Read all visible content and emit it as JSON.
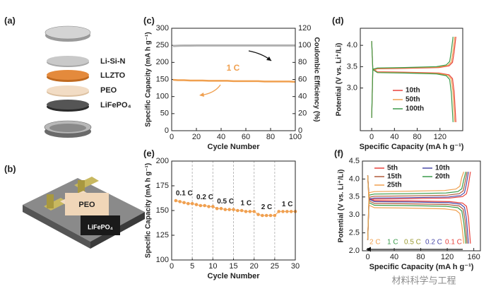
{
  "schematics": [
    {
      "panel_label": "(a)",
      "labels": [
        "Li-Si-N",
        "LLZTO",
        "PEO",
        "LiFePO₄"
      ]
    },
    {
      "panel_label": "(b)",
      "labels": [
        "PEO",
        "LiFePO₄"
      ]
    }
  ],
  "watermark": "材料科学与工程",
  "chart_data": [
    {
      "type": "line",
      "panel_label": "(c)",
      "xlabel": "Cycle Number",
      "ylabel": "Specific Capacity (mA h g⁻¹)",
      "y2label": "Coulombic Efficiency (%)",
      "xlim": [
        0,
        100
      ],
      "xticks": [
        0,
        20,
        40,
        60,
        80,
        100
      ],
      "ylim": [
        0,
        300
      ],
      "yticks": [
        0,
        50,
        100,
        150,
        200,
        250,
        300
      ],
      "y2lim": [
        0,
        120
      ],
      "y2ticks": [
        0,
        20,
        40,
        60,
        80,
        100,
        120
      ],
      "annotation": "1 C",
      "x": [
        1,
        5,
        10,
        15,
        20,
        25,
        30,
        35,
        40,
        45,
        50,
        55,
        60,
        65,
        70,
        75,
        80,
        85,
        90,
        95,
        100
      ],
      "series": [
        {
          "color": "#f0a050",
          "values": [
            149,
            148,
            148,
            147,
            147,
            147,
            146,
            146,
            146,
            146,
            145,
            145,
            145,
            145,
            145,
            144,
            144,
            144,
            144,
            144,
            143
          ]
        },
        {
          "color": "#b0b0b0",
          "axis": "y2",
          "values": [
            99.2,
            99.6,
            99.7,
            99.7,
            99.8,
            99.8,
            99.8,
            99.8,
            99.8,
            99.8,
            99.8,
            99.8,
            99.8,
            99.8,
            99.8,
            99.8,
            99.8,
            99.8,
            99.8,
            99.8,
            99.8
          ]
        }
      ]
    },
    {
      "type": "curves",
      "panel_label": "(d)",
      "xlabel": "Specific Capacity (mA h g⁻¹)",
      "ylabel": "Potential (V vs. Li⁺/Li)",
      "xlim": [
        -20,
        160
      ],
      "xticks": [
        0,
        40,
        80,
        120
      ],
      "ylim": [
        2.0,
        4.4
      ],
      "yticks": [
        {
          "value": 3.0,
          "label": "3.0"
        },
        {
          "value": 3.5,
          "label": "3.5"
        },
        {
          "value": 4.0,
          "label": "4.0"
        }
      ],
      "series": [
        {
          "name": "10th",
          "color": "#e8413c",
          "x": [
            0,
            2,
            10,
            59,
            118,
            136,
            142,
            145,
            148,
            null,
            0,
            2,
            10,
            59,
            118,
            136,
            142,
            145,
            148
          ],
          "values": [
            2.3,
            3.42,
            3.45,
            3.46,
            3.48,
            3.52,
            3.6,
            3.85,
            4.2,
            null,
            4.1,
            3.45,
            3.38,
            3.37,
            3.35,
            3.31,
            3.22,
            2.9,
            2.2
          ]
        },
        {
          "name": "50th",
          "color": "#f0a050",
          "x": [
            0,
            2,
            10,
            58,
            117,
            134,
            140,
            143,
            146,
            null,
            0,
            2,
            10,
            58,
            117,
            134,
            140,
            143,
            146
          ],
          "values": [
            2.3,
            3.43,
            3.46,
            3.47,
            3.49,
            3.53,
            3.61,
            3.86,
            4.2,
            null,
            4.1,
            3.44,
            3.37,
            3.36,
            3.34,
            3.3,
            3.21,
            2.89,
            2.2
          ]
        },
        {
          "name": "100th",
          "color": "#3a9a4a",
          "x": [
            0,
            2,
            10,
            57,
            114,
            131,
            137,
            140,
            143,
            null,
            0,
            2,
            10,
            57,
            114,
            131,
            137,
            140,
            143
          ],
          "values": [
            2.3,
            3.44,
            3.47,
            3.48,
            3.5,
            3.54,
            3.62,
            3.87,
            4.2,
            null,
            4.1,
            3.43,
            3.36,
            3.35,
            3.33,
            3.29,
            3.2,
            2.88,
            2.2
          ]
        }
      ]
    },
    {
      "type": "rate",
      "panel_label": "(e)",
      "xlabel": "Cycle Number",
      "ylabel": "Specific Capacity (mA h g⁻¹)",
      "xlim": [
        0,
        30
      ],
      "xticks": [
        0,
        5,
        10,
        15,
        20,
        25,
        30
      ],
      "ylim": [
        100,
        200
      ],
      "yticks": [
        100,
        125,
        150,
        175,
        200
      ],
      "dividers": [
        5,
        10,
        15,
        20,
        25
      ],
      "annotations": [
        "0.1 C",
        "0.2 C",
        "0.5 C",
        "1 C",
        "2 C",
        "1 C"
      ],
      "color": "#f0a050",
      "x": [
        1,
        2,
        3,
        4,
        5,
        6,
        7,
        8,
        9,
        10,
        11,
        12,
        13,
        14,
        15,
        16,
        17,
        18,
        19,
        20,
        21,
        22,
        23,
        24,
        25,
        26,
        27,
        28,
        29,
        30
      ],
      "values": [
        160,
        159,
        158,
        157,
        157,
        156,
        155,
        155,
        154,
        154,
        152,
        152,
        151,
        151,
        151,
        150,
        150,
        149,
        149,
        149,
        146,
        145,
        145,
        145,
        145,
        149,
        149,
        149,
        149,
        149
      ]
    },
    {
      "type": "curves",
      "panel_label": "(f)",
      "xlabel": "Specific Capacity (mA h g⁻¹)",
      "ylabel": "Potential (V vs. Li⁺/Li)",
      "xlim": [
        -8,
        170
      ],
      "xticks": [
        0,
        40,
        80,
        120,
        160
      ],
      "ylim": [
        2.0,
        4.5
      ],
      "yticks": [
        {
          "value": 2.0,
          "label": "2.0"
        },
        {
          "value": 2.5,
          "label": "2.5"
        },
        {
          "value": 3.0,
          "label": "3.0"
        },
        {
          "value": 3.5,
          "label": "3.5"
        },
        {
          "value": 4.0,
          "label": "4.0"
        },
        {
          "value": 4.5,
          "label": "4.5"
        }
      ],
      "rate_labels": [
        {
          "text": "2 C",
          "color": "#f0a050"
        },
        {
          "text": "1 C",
          "color": "#3a9a4a"
        },
        {
          "text": "0.5 C",
          "color": "#9a9a30"
        },
        {
          "text": "0.2 C",
          "color": "#4a4aa8"
        },
        {
          "text": "0.1 C",
          "color": "#e8413c"
        }
      ],
      "series": [
        {
          "name": "5th",
          "color": "#e8413c",
          "x": [
            0,
            2,
            10,
            62,
            124,
            143,
            149,
            152,
            155,
            null,
            0,
            2,
            10,
            62,
            124,
            143,
            149,
            152,
            155
          ],
          "values": [
            2.3,
            3.41,
            3.44,
            3.45,
            3.47,
            3.51,
            3.59,
            3.84,
            4.2,
            null,
            4.1,
            3.47,
            3.4,
            3.39,
            3.37,
            3.33,
            3.24,
            2.92,
            2.2
          ]
        },
        {
          "name": "10th",
          "color": "#4a4aa8",
          "x": [
            0,
            2,
            10,
            61,
            122,
            140,
            146,
            149,
            152,
            null,
            0,
            2,
            10,
            61,
            122,
            140,
            146,
            149,
            152
          ],
          "values": [
            2.3,
            3.44,
            3.47,
            3.48,
            3.5,
            3.54,
            3.62,
            3.87,
            4.2,
            null,
            4.1,
            3.44,
            3.37,
            3.36,
            3.34,
            3.3,
            3.21,
            2.89,
            2.2
          ]
        },
        {
          "name": "15th",
          "color": "#b05a3a",
          "x": [
            0,
            2,
            10,
            60,
            120,
            138,
            144,
            147,
            150,
            null,
            0,
            2,
            10,
            60,
            120,
            138,
            144,
            147,
            150
          ],
          "values": [
            2.3,
            3.49,
            3.52,
            3.53,
            3.55,
            3.59,
            3.67,
            3.92,
            4.2,
            null,
            4.1,
            3.39,
            3.32,
            3.31,
            3.29,
            3.25,
            3.16,
            2.84,
            2.2
          ]
        },
        {
          "name": "20th",
          "color": "#3a9a4a",
          "x": [
            0,
            2,
            10,
            59,
            118,
            136,
            142,
            145,
            148,
            null,
            0,
            2,
            10,
            59,
            118,
            136,
            142,
            145,
            148
          ],
          "values": [
            2.3,
            3.55,
            3.58,
            3.59,
            3.61,
            3.65,
            3.73,
            3.98,
            4.2,
            null,
            4.1,
            3.34,
            3.27,
            3.26,
            3.24,
            3.2,
            3.11,
            2.79,
            2.2
          ]
        },
        {
          "name": "25th",
          "color": "#f0a050",
          "x": [
            0,
            2,
            10,
            58,
            116,
            133,
            139,
            142,
            145,
            null,
            0,
            2,
            10,
            58,
            116,
            133,
            139,
            142,
            145
          ],
          "values": [
            2.3,
            3.62,
            3.65,
            3.66,
            3.68,
            3.72,
            3.8,
            4.05,
            4.2,
            null,
            4.1,
            3.27,
            3.2,
            3.19,
            3.17,
            3.13,
            3.04,
            2.72,
            2.2
          ]
        }
      ]
    }
  ]
}
